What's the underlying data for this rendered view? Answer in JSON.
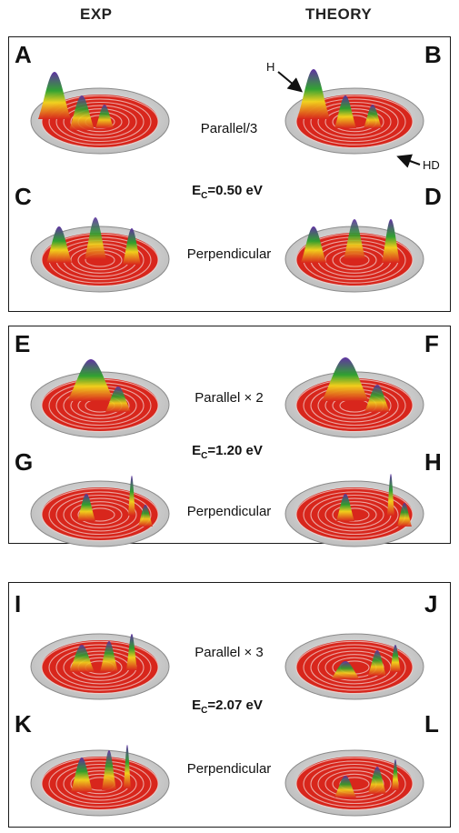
{
  "headers": {
    "left": "EXP",
    "right": "THEORY"
  },
  "panels": [
    {
      "letters": [
        "A",
        "B",
        "C",
        "D"
      ],
      "top_caption": "Parallel/3",
      "energy_prefix": "E",
      "energy_sub": "C",
      "energy_value": "=0.50 eV",
      "bottom_caption": "Perpendicular"
    },
    {
      "letters": [
        "E",
        "F",
        "G",
        "H"
      ],
      "top_caption": "Parallel × 2",
      "energy_prefix": "E",
      "energy_sub": "C",
      "energy_value": "=1.20 eV",
      "bottom_caption": "Perpendicular"
    },
    {
      "letters": [
        "I",
        "J",
        "K",
        "L"
      ],
      "top_caption": "Parallel × 3",
      "energy_prefix": "E",
      "energy_sub": "C",
      "energy_value": "=2.07 eV",
      "bottom_caption": "Perpendicular"
    }
  ],
  "annotations": {
    "h_label": "H",
    "hd_label": "HD"
  },
  "colors": {
    "ring": "#b9b9b9",
    "floor": "#d8261c",
    "peak_low": "#2ca02c",
    "peak_mid": "#f2d21b",
    "peak_high": "#5b2ca0"
  }
}
